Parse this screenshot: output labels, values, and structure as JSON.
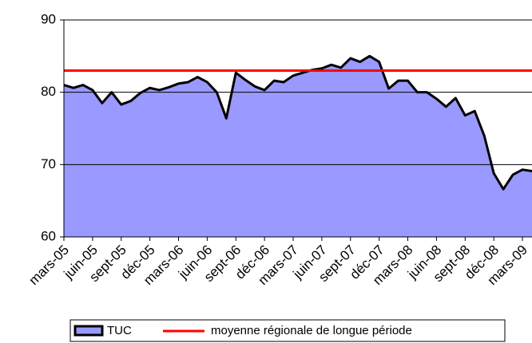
{
  "chart_data": {
    "type": "area",
    "categories": [
      "mars-05",
      null,
      null,
      "juin-05",
      null,
      null,
      "sept-05",
      null,
      null,
      "déc-05",
      null,
      null,
      "mars-06",
      null,
      null,
      "juin-06",
      null,
      null,
      "sept-06",
      null,
      null,
      "déc-06",
      null,
      null,
      "mars-07",
      null,
      null,
      "juin-07",
      null,
      null,
      "sept-07",
      null,
      null,
      "déc-07",
      null,
      null,
      "mars-08",
      null,
      null,
      "juin-08",
      null,
      null,
      "sept-08",
      null,
      null,
      "déc-08",
      null,
      null,
      "mars-09",
      null
    ],
    "series": [
      {
        "name": "TUC",
        "color": "#9999ff",
        "values": [
          81.0,
          80.6,
          81.0,
          80.3,
          78.5,
          80.0,
          78.3,
          78.8,
          79.9,
          80.6,
          80.3,
          80.7,
          81.2,
          81.4,
          82.1,
          81.4,
          80.0,
          76.4,
          82.7,
          81.7,
          80.8,
          80.3,
          81.6,
          81.4,
          82.3,
          82.7,
          83.1,
          83.3,
          83.8,
          83.4,
          84.7,
          84.2,
          85.0,
          84.2,
          80.5,
          81.6,
          81.6,
          80.0,
          80.0,
          79.1,
          78.0,
          79.2,
          76.8,
          77.4,
          74.0,
          68.8,
          66.6,
          68.6,
          69.3,
          69.1
        ]
      },
      {
        "name": "moyenne régionale de longue période",
        "color": "#ff0000",
        "values": [
          83,
          83,
          83,
          83,
          83,
          83,
          83,
          83,
          83,
          83,
          83,
          83,
          83,
          83,
          83,
          83,
          83,
          83,
          83,
          83,
          83,
          83,
          83,
          83,
          83,
          83,
          83,
          83,
          83,
          83,
          83,
          83,
          83,
          83,
          83,
          83,
          83,
          83,
          83,
          83,
          83,
          83,
          83,
          83,
          83,
          83,
          83,
          83,
          83,
          83
        ]
      }
    ],
    "ylim": [
      60,
      90
    ],
    "yticks": [
      60,
      70,
      80,
      90
    ],
    "grid": true
  }
}
